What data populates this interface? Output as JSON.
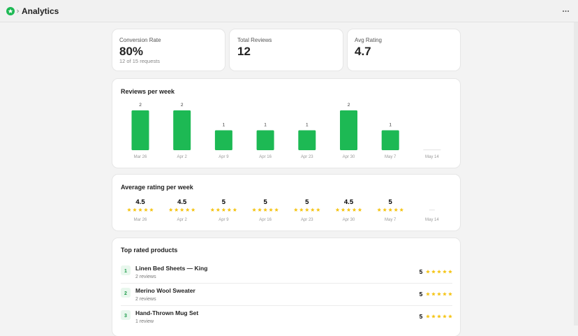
{
  "header": {
    "title": "Analytics"
  },
  "stats": [
    {
      "label": "Conversion Rate",
      "value": "80%",
      "sub": "12 of 15 requests"
    },
    {
      "label": "Total Reviews",
      "value": "12"
    },
    {
      "label": "Avg Rating",
      "value": "4.7"
    }
  ],
  "reviews_per_week": {
    "title": "Reviews per week",
    "categories": [
      "Mar 26",
      "Apr 2",
      "Apr 9",
      "Apr 16",
      "Apr 23",
      "Apr 30",
      "May 7",
      "May 14"
    ],
    "values": [
      2,
      2,
      1,
      1,
      1,
      2,
      1,
      0
    ],
    "color": "#1db954"
  },
  "average_rating": {
    "title": "Average rating per week",
    "categories": [
      "Mar 26",
      "Apr 2",
      "Apr 9",
      "Apr 16",
      "Apr 23",
      "Apr 30",
      "May 7",
      "May 14"
    ],
    "values": [
      4.5,
      4.5,
      5,
      5,
      5,
      4.5,
      5,
      null
    ],
    "empty_label": "—"
  },
  "top_products": {
    "title": "Top rated products",
    "rows": [
      {
        "rank": "1",
        "name": "Linen Bed Sheets — King",
        "reviews": "2 reviews",
        "rating": "5"
      },
      {
        "rank": "2",
        "name": "Merino Wool Sweater",
        "reviews": "2 reviews",
        "rating": "5"
      },
      {
        "rank": "3",
        "name": "Hand-Thrown Mug Set",
        "reviews": "1 review",
        "rating": "5"
      }
    ]
  }
}
